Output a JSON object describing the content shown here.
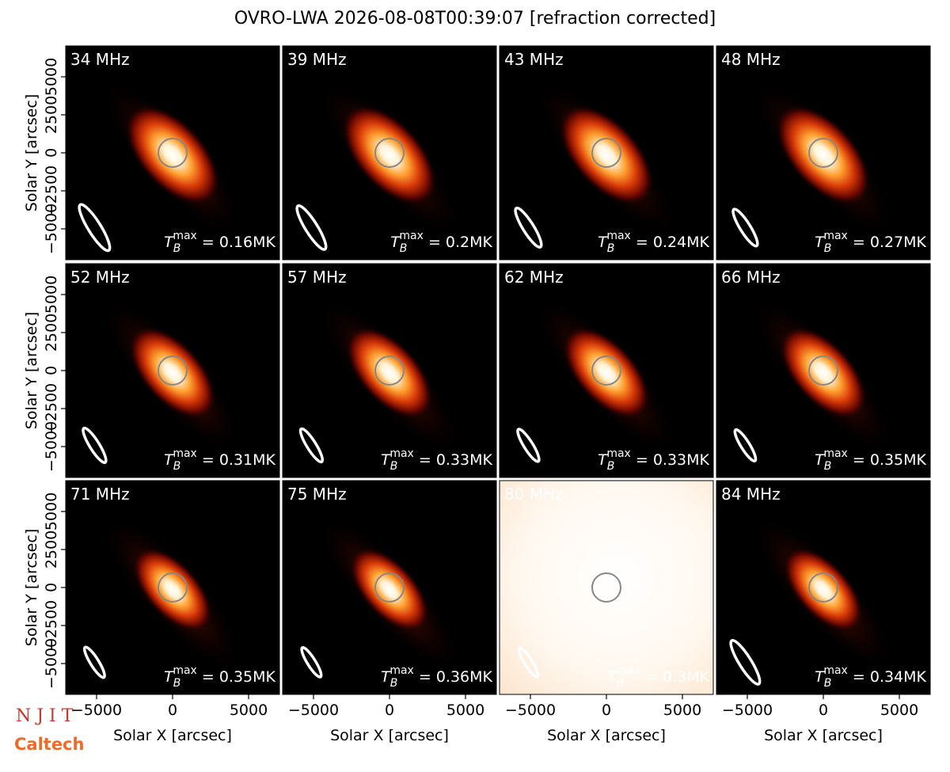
{
  "chart_data": {
    "type": "image-grid",
    "title": "OVRO-LWA 2026-08-08T00:39:07 [refraction corrected]",
    "panels": [
      {
        "label": "34 MHz",
        "tmax": "0.16MK"
      },
      {
        "label": "39 MHz",
        "tmax": "0.2MK"
      },
      {
        "label": "43 MHz",
        "tmax": "0.24MK"
      },
      {
        "label": "48 MHz",
        "tmax": "0.27MK"
      },
      {
        "label": "52 MHz",
        "tmax": "0.31MK"
      },
      {
        "label": "57 MHz",
        "tmax": "0.33MK"
      },
      {
        "label": "62 MHz",
        "tmax": "0.33MK"
      },
      {
        "label": "66 MHz",
        "tmax": "0.35MK"
      },
      {
        "label": "71 MHz",
        "tmax": "0.35MK"
      },
      {
        "label": "75 MHz",
        "tmax": "0.36MK"
      },
      {
        "label": "80 MHz",
        "tmax": "0.3MK"
      },
      {
        "label": "84 MHz",
        "tmax": "0.34MK"
      }
    ],
    "tmax_symbol": "T",
    "tmax_sub": "B",
    "tmax_sup": "max",
    "tmax_eq": " = ",
    "xlabel": "Solar X [arcsec]",
    "ylabel": "Solar Y [arcsec]",
    "xlim": [
      -7030,
      7030
    ],
    "ylim": [
      -7030,
      7030
    ],
    "xticks": [
      {
        "value": -5000,
        "label": "−5000"
      },
      0,
      5000
    ],
    "yticks": [
      {
        "value": -5000,
        "label": "−5000"
      },
      {
        "value": -2500,
        "label": "−2500"
      },
      0,
      2500,
      5000
    ],
    "logos": [
      "N J I T",
      "Caltech"
    ]
  }
}
